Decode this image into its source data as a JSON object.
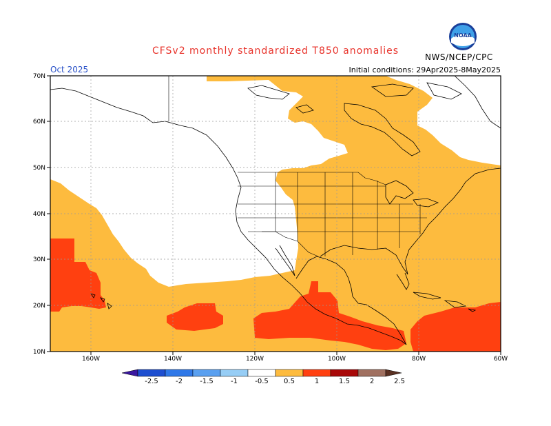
{
  "header": {
    "title": "CFSv2 monthly standardized T850 anomalies",
    "month": "Oct 2025",
    "initial_conditions": "Initial conditions: 29Apr2025-8May2025",
    "agency": "NWS/NCEP/CPC",
    "logo_text": "NOAA"
  },
  "axes": {
    "lat_labels": [
      "70N",
      "60N",
      "50N",
      "40N",
      "30N",
      "20N",
      "10N"
    ],
    "lon_labels": [
      "160W",
      "140W",
      "120W",
      "100W",
      "80W",
      "60W"
    ]
  },
  "colorbar": {
    "labels": [
      "-2.5",
      "-2",
      "-1.5",
      "-1",
      "-0.5",
      "0.5",
      "1",
      "1.5",
      "2",
      "2.5"
    ],
    "colors": [
      "#3a18a0",
      "#1e4fd0",
      "#2f78e8",
      "#5aa0f0",
      "#96cdf5",
      "#ffffff",
      "#fdbb3e",
      "#ff4010",
      "#a80808",
      "#a07060",
      "#5a3022"
    ]
  },
  "palette": {
    "moderate": "#fdbb3e",
    "strong": "#ff4010",
    "neutral": "#ffffff"
  }
}
